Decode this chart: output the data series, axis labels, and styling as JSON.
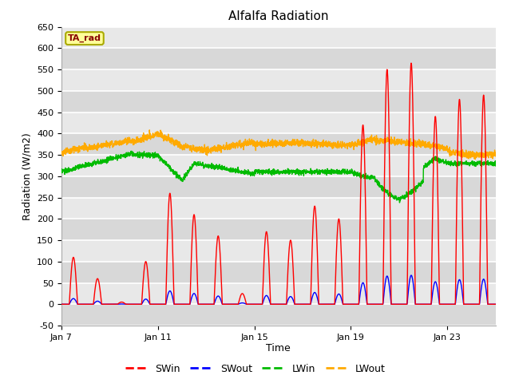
{
  "title": "Alfalfa Radiation",
  "xlabel": "Time",
  "ylabel": "Radiation (W/m2)",
  "ylim": [
    -50,
    620
  ],
  "xlim_days": [
    0,
    18
  ],
  "xtick_positions": [
    0,
    4,
    8,
    12,
    16
  ],
  "xtick_labels": [
    "Jan 7",
    "Jan 11",
    "Jan 15",
    "Jan 19",
    "Jan 23"
  ],
  "colors": {
    "SWin": "#ff0000",
    "SWout": "#0000ff",
    "LWin": "#00bb00",
    "LWout": "#ffaa00"
  },
  "annotation_text": "TA_rad",
  "annotation_facecolor": "#ffff99",
  "annotation_edgecolor": "#aaaa00",
  "annotation_textcolor": "#880000",
  "bg_color": "#ffffff",
  "plot_bg_color": "#e8e8e8",
  "grid_color": "#ffffff",
  "linewidth": 1.0
}
